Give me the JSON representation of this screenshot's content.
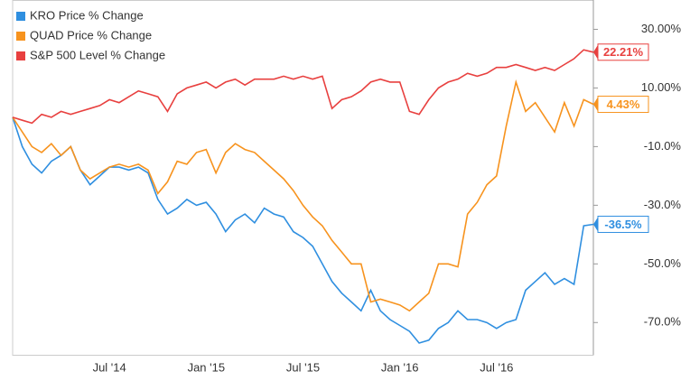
{
  "chart_data": {
    "type": "line",
    "categories": [
      null,
      null,
      null,
      null,
      null,
      null,
      null,
      null,
      null,
      null,
      "Jul '14",
      null,
      null,
      null,
      null,
      null,
      null,
      null,
      null,
      null,
      "Jan '15",
      null,
      null,
      null,
      null,
      null,
      null,
      null,
      null,
      null,
      "Jul '15",
      null,
      null,
      null,
      null,
      null,
      null,
      null,
      null,
      null,
      "Jan '16",
      null,
      null,
      null,
      null,
      null,
      null,
      null,
      null,
      null,
      "Jul '16",
      null,
      null,
      null,
      null,
      null,
      null,
      null,
      null,
      null,
      null
    ],
    "series": [
      {
        "name": "KRO Price % Change",
        "color": "#2f8fe0",
        "values": [
          0,
          -10,
          -16,
          -19,
          -15,
          -13,
          -10,
          -18,
          -23,
          -20,
          -17,
          -17,
          -18,
          -17,
          -19,
          -28,
          -33,
          -31,
          -28,
          -30,
          -29,
          -33,
          -39,
          -35,
          -33,
          -36,
          -31,
          -33,
          -34,
          -39,
          -41,
          -44,
          -50,
          -56,
          -60,
          -63,
          -66,
          -59,
          -66,
          -69,
          -71,
          -73,
          -77,
          -76,
          -72,
          -70,
          -66,
          -69,
          -69,
          -70,
          -72,
          -70,
          -69,
          -59,
          -56,
          -53,
          -57,
          -55,
          -57,
          -37,
          -36.5
        ],
        "value_labels": [
          null,
          null,
          null,
          null,
          null,
          null,
          null,
          null,
          null,
          null,
          null,
          null,
          null,
          null,
          null,
          null,
          null,
          null,
          null,
          null,
          null,
          null,
          null,
          null,
          null,
          null,
          null,
          null,
          null,
          null,
          null,
          null,
          null,
          null,
          null,
          null,
          null,
          null,
          null,
          null,
          null,
          null,
          null,
          null,
          null,
          null,
          null,
          null,
          null,
          null,
          null,
          null,
          null,
          null,
          null,
          null,
          null,
          null,
          null,
          null,
          "-36.5%"
        ]
      },
      {
        "name": "QUAD Price % Change",
        "color": "#f7931e",
        "values": [
          0,
          -5,
          -10,
          -12,
          -9,
          -13,
          -10,
          -18,
          -21,
          -19,
          -17,
          -16,
          -17,
          -16,
          -18,
          -26,
          -22,
          -15,
          -16,
          -12,
          -11,
          -19,
          -12,
          -9,
          -11,
          -12,
          -15,
          -18,
          -21,
          -25,
          -30,
          -34,
          -37,
          -42,
          -46,
          -50,
          -50,
          -63,
          -62,
          -63,
          -64,
          -66,
          -63,
          -60,
          -50,
          -50,
          -51,
          -33,
          -29,
          -23,
          -20,
          -3,
          12,
          2,
          5,
          0,
          -5,
          5,
          -3,
          6,
          4.43
        ],
        "value_labels": [
          null,
          null,
          null,
          null,
          null,
          null,
          null,
          null,
          null,
          null,
          null,
          null,
          null,
          null,
          null,
          null,
          null,
          null,
          null,
          null,
          null,
          null,
          null,
          null,
          null,
          null,
          null,
          null,
          null,
          null,
          null,
          null,
          null,
          null,
          null,
          null,
          null,
          null,
          null,
          null,
          null,
          null,
          null,
          null,
          null,
          null,
          null,
          null,
          null,
          null,
          null,
          null,
          null,
          null,
          null,
          null,
          null,
          null,
          null,
          null,
          "4.43%"
        ]
      },
      {
        "name": "S&P 500 Level % Change",
        "color": "#e8403f",
        "values": [
          0,
          -1,
          -2,
          1,
          0,
          2,
          1,
          2,
          3,
          4,
          6,
          5,
          7,
          9,
          8,
          7,
          2,
          8,
          10,
          11,
          12,
          10,
          12,
          13,
          11,
          13,
          13,
          13,
          14,
          13,
          14,
          13,
          14,
          3,
          6,
          7,
          9,
          12,
          13,
          12,
          12,
          2,
          1,
          6,
          10,
          12,
          13,
          15,
          14,
          15,
          17,
          17,
          18,
          17,
          16,
          17,
          16,
          18,
          20,
          23,
          22.21
        ],
        "value_labels": [
          null,
          null,
          null,
          null,
          null,
          null,
          null,
          null,
          null,
          null,
          null,
          null,
          null,
          null,
          null,
          null,
          null,
          null,
          null,
          null,
          null,
          null,
          null,
          null,
          null,
          null,
          null,
          null,
          null,
          null,
          null,
          null,
          null,
          null,
          null,
          null,
          null,
          null,
          null,
          null,
          null,
          null,
          null,
          null,
          null,
          null,
          null,
          null,
          null,
          null,
          null,
          null,
          null,
          null,
          null,
          null,
          null,
          null,
          null,
          null,
          "22.21%"
        ]
      }
    ],
    "ylim": [
      -81,
      40
    ],
    "yticks": [
      {
        "value": 30,
        "label": "30.00%"
      },
      {
        "value": 10,
        "label": "10.00%"
      },
      {
        "value": -10,
        "label": "-10.0%"
      },
      {
        "value": -30,
        "label": "-30.0%"
      },
      {
        "value": -50,
        "label": "-50.0%"
      },
      {
        "value": -70,
        "label": "-70.0%"
      }
    ],
    "grid": false,
    "legend": "top-left"
  }
}
